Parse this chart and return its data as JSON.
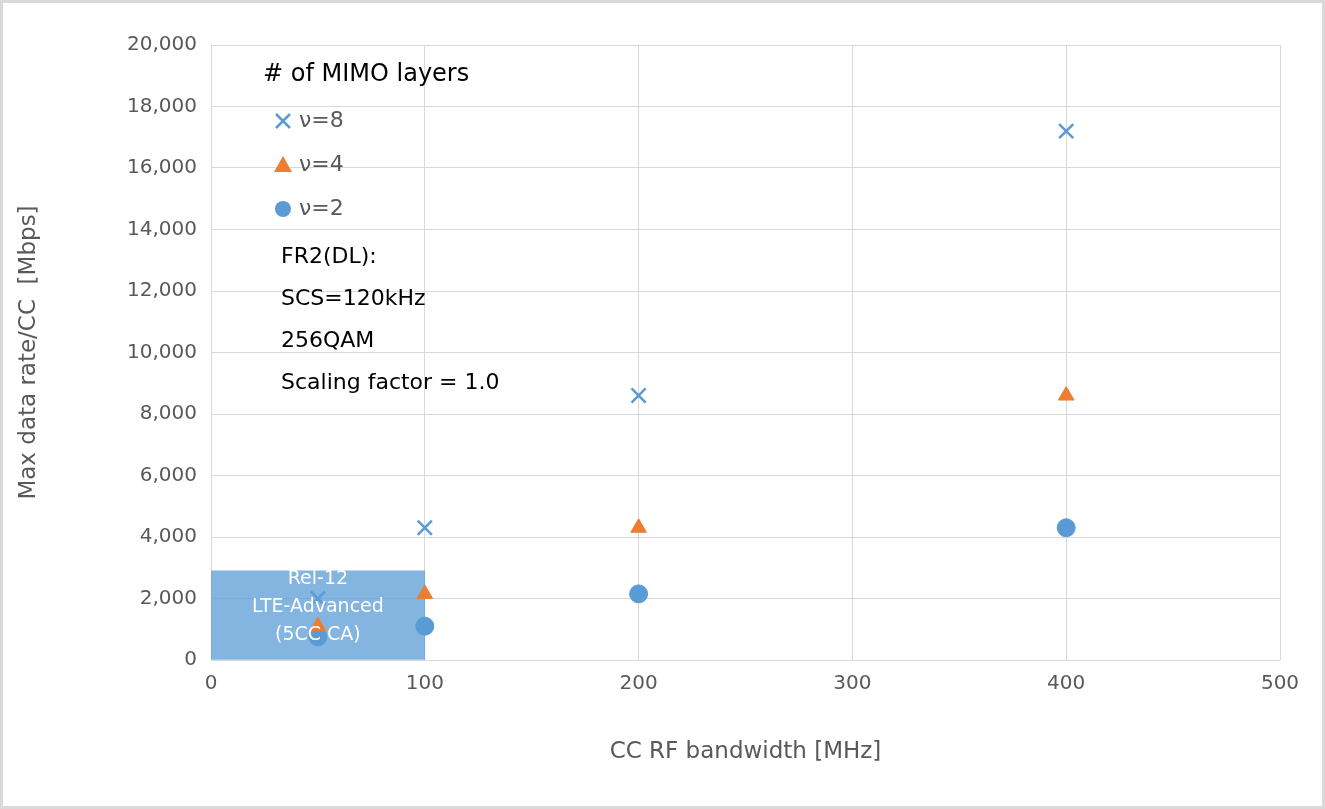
{
  "chart_data": {
    "type": "scatter",
    "xlabel": "CC RF bandwidth [MHz]",
    "ylabel": "Max data rate/CC  [Mbps]",
    "legend_title": "# of MIMO layers",
    "legend": "top left",
    "grid": true,
    "x": [
      50,
      100,
      200,
      400
    ],
    "series": [
      {
        "name": "ν=8",
        "color": "#5b9bd5",
        "marker": "cross",
        "values": [
          2000,
          4300,
          8600,
          17200
        ]
      },
      {
        "name": "ν=4",
        "color": "#ed7d31",
        "marker": "triangle",
        "values": [
          1100,
          2150,
          4300,
          8600
        ]
      },
      {
        "name": "ν=2",
        "color": "#5b9bd5",
        "marker": "circle",
        "values": [
          750,
          1100,
          2150,
          4300
        ]
      },
      {
        "type": "bar",
        "name": "Rel-12\nLTE-Advanced\n(5CC CA)",
        "color": "#5b9bd5",
        "x": [
          50
        ],
        "values": [
          2900
        ]
      }
    ],
    "xlim": [
      0,
      500
    ],
    "xticks": [
      0,
      100,
      200,
      300,
      400,
      500
    ],
    "ylim": [
      0,
      20000
    ],
    "yticks": [
      {
        "value": 0,
        "label": "0"
      },
      {
        "value": 2000,
        "label": "2,000"
      },
      {
        "value": 4000,
        "label": "4,000"
      },
      {
        "value": 6000,
        "label": "6,000"
      },
      {
        "value": 8000,
        "label": "8,000"
      },
      {
        "value": 10000,
        "label": "10,000"
      },
      {
        "value": 12000,
        "label": "12,000"
      },
      {
        "value": 14000,
        "label": "14,000"
      },
      {
        "value": 16000,
        "label": "16,000"
      },
      {
        "value": 18000,
        "label": "18,000"
      },
      {
        "value": 20000,
        "label": "20,000"
      }
    ],
    "annotations": [
      "FR2(DL):\nSCS=120kHz\n256QAM\nScaling factor = 1.0"
    ]
  }
}
